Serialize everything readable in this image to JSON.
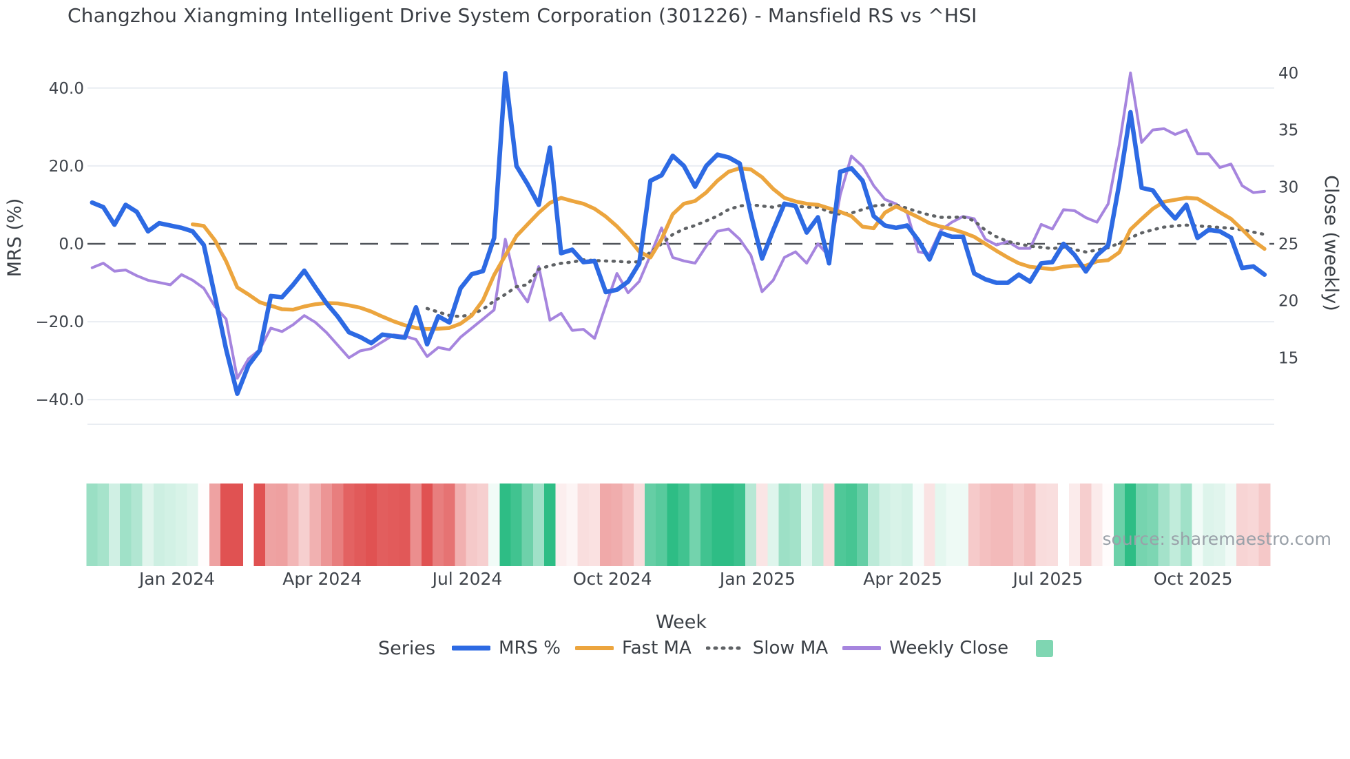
{
  "title": "Changzhou Xiangming Intelligent Drive System Corporation (301226) - Mansfield RS vs ^HSI",
  "watermark": "source: sharemaestro.com",
  "legend": {
    "title": "Series",
    "heat_swatch_color": "#7fd6b2"
  },
  "chart_data": {
    "type": "line",
    "title": "Changzhou Xiangming Intelligent Drive System Corporation (301226) - Mansfield RS vs ^HSI",
    "x_axis": {
      "label": "Week",
      "tick_labels": [
        "Jan 2024",
        "Apr 2024",
        "Jul 2024",
        "Oct 2024",
        "Jan 2025",
        "Apr 2025",
        "Jul 2025",
        "Oct 2025"
      ],
      "tick_weeks": [
        7.6,
        20.6,
        33.6,
        46.6,
        59.6,
        72.6,
        85.6,
        98.6
      ],
      "weeks_total": 106
    },
    "y_left": {
      "label": "MRS (%)",
      "tick_labels": [
        "40.0",
        "20.0",
        "0.0",
        "−20.0",
        "−40.0"
      ],
      "tick_values": [
        40,
        20,
        0,
        -20,
        -40
      ],
      "zero_line": 0
    },
    "y_right": {
      "label": "Close (weekly)",
      "tick_labels": [
        "40",
        "35",
        "30",
        "25",
        "20",
        "15"
      ],
      "tick_values": [
        40,
        35,
        30,
        25,
        20,
        15
      ]
    },
    "series": [
      {
        "name": "Weekly Close",
        "axis": "right",
        "color": "#a685de",
        "width": 4,
        "style": "solid",
        "start_week": 0,
        "values": [
          22.9,
          23.3,
          22.6,
          22.7,
          22.2,
          21.8,
          21.6,
          21.4,
          22.3,
          21.8,
          21.1,
          19.5,
          18.4,
          13.2,
          14.9,
          15.7,
          17.6,
          17.3,
          17.9,
          18.7,
          18.1,
          17.2,
          16.1,
          15.0,
          15.6,
          15.8,
          16.4,
          17.0,
          16.9,
          16.6,
          15.1,
          15.9,
          15.7,
          16.8,
          17.6,
          18.4,
          19.2,
          25.4,
          21.3,
          19.9,
          23.0,
          18.3,
          18.9,
          17.4,
          17.5,
          16.7,
          19.6,
          22.4,
          20.7,
          21.7,
          24.0,
          26.4,
          23.8,
          23.5,
          23.3,
          24.8,
          26.1,
          26.3,
          25.4,
          24.0,
          20.8,
          21.8,
          23.8,
          24.3,
          23.3,
          25.0,
          23.9,
          29.3,
          32.7,
          31.8,
          30.1,
          28.9,
          28.5,
          27.7,
          24.3,
          24.1,
          26.2,
          26.9,
          27.4,
          27.2,
          25.4,
          24.9,
          25.2,
          24.6,
          24.6,
          26.7,
          26.3,
          28.0,
          27.9,
          27.3,
          26.9,
          28.5,
          33.7,
          40.0,
          33.9,
          35.0,
          35.1,
          34.6,
          35.0,
          32.9,
          32.9,
          31.7,
          32.0,
          30.1,
          29.5,
          29.6
        ]
      },
      {
        "name": "Slow MA",
        "axis": "left",
        "color": "#5f6265",
        "width": 4.5,
        "style": "dotted",
        "start_week": 30,
        "values": [
          -16.6,
          -17.5,
          -18.4,
          -18.7,
          -18.1,
          -16.8,
          -14.7,
          -13.0,
          -11.0,
          -10.5,
          -6.5,
          -5.6,
          -5.0,
          -4.7,
          -4.1,
          -4.3,
          -4.4,
          -4.5,
          -4.7,
          -4.6,
          -2.1,
          0.0,
          2.4,
          3.8,
          4.7,
          5.9,
          7.1,
          8.8,
          9.7,
          10.0,
          9.7,
          9.4,
          10.1,
          9.7,
          9.4,
          9.4,
          8.2,
          7.6,
          7.9,
          8.8,
          9.7,
          10.0,
          10.0,
          9.1,
          8.2,
          7.4,
          6.8,
          6.8,
          6.9,
          5.9,
          3.5,
          1.8,
          0.6,
          0.0,
          -0.6,
          -0.9,
          -1.2,
          -0.9,
          -1.5,
          -2.1,
          -1.6,
          -1.0,
          0.2,
          1.6,
          2.8,
          3.6,
          4.3,
          4.6,
          4.8,
          4.6,
          4.4,
          4.2,
          4.0,
          3.6,
          3.0,
          2.4
        ]
      },
      {
        "name": "Fast MA",
        "axis": "left",
        "color": "#eca53e",
        "width": 5.5,
        "style": "solid",
        "start_week": 9,
        "values": [
          5.0,
          4.6,
          0.9,
          -4.5,
          -11.2,
          -13.0,
          -15.0,
          -15.9,
          -16.8,
          -16.9,
          -16.1,
          -15.5,
          -15.2,
          -15.3,
          -15.8,
          -16.4,
          -17.4,
          -18.7,
          -19.9,
          -20.9,
          -21.6,
          -21.9,
          -21.8,
          -21.6,
          -20.5,
          -18.4,
          -14.5,
          -8.0,
          -3.0,
          2.0,
          5.0,
          8.0,
          10.5,
          11.8,
          11.0,
          10.3,
          9.0,
          7.0,
          4.5,
          1.5,
          -2.0,
          -3.5,
          1.2,
          7.6,
          10.3,
          11.0,
          13.2,
          16.2,
          18.5,
          19.4,
          19.1,
          17.1,
          14.1,
          11.8,
          10.9,
          10.3,
          10.0,
          9.1,
          8.2,
          7.1,
          4.4,
          4.0,
          8.0,
          9.6,
          8.2,
          6.8,
          5.3,
          4.4,
          3.8,
          2.9,
          1.8,
          0.0,
          -1.8,
          -3.5,
          -5.0,
          -5.9,
          -6.2,
          -6.5,
          -5.9,
          -5.6,
          -5.6,
          -4.5,
          -4.2,
          -2.2,
          3.7,
          6.4,
          9.0,
          10.8,
          11.3,
          11.8,
          11.6,
          9.9,
          8.1,
          6.4,
          3.7,
          0.8,
          -1.3
        ]
      },
      {
        "name": "MRS %",
        "axis": "left",
        "color": "#2d6ae3",
        "width": 6.5,
        "style": "solid",
        "start_week": 0,
        "values": [
          10.6,
          9.4,
          4.9,
          10.0,
          8.2,
          3.2,
          5.3,
          4.7,
          4.1,
          3.2,
          -0.3,
          -13.5,
          -27.1,
          -38.5,
          -31.2,
          -27.4,
          -13.4,
          -13.7,
          -10.5,
          -6.9,
          -11.2,
          -15.3,
          -18.7,
          -22.7,
          -23.9,
          -25.5,
          -23.3,
          -23.7,
          -24.1,
          -16.3,
          -25.8,
          -18.6,
          -20.2,
          -11.4,
          -7.8,
          -7.0,
          1.5,
          43.8,
          20.0,
          15.3,
          10.0,
          24.7,
          -2.4,
          -1.5,
          -4.7,
          -4.4,
          -12.4,
          -11.8,
          -9.7,
          -5.0,
          16.2,
          17.6,
          22.6,
          20.0,
          14.7,
          20.0,
          22.9,
          22.2,
          20.6,
          7.6,
          -3.8,
          3.5,
          10.3,
          9.7,
          2.9,
          6.8,
          -5.0,
          18.5,
          19.4,
          16.2,
          7.1,
          4.7,
          4.1,
          4.7,
          0.9,
          -4.0,
          2.8,
          1.8,
          1.8,
          -7.6,
          -9.1,
          -10.0,
          -10.0,
          -7.9,
          -9.7,
          -5.0,
          -4.7,
          0.0,
          -2.9,
          -7.1,
          -2.9,
          -0.4,
          15.5,
          33.8,
          14.4,
          13.7,
          9.6,
          6.5,
          10.0,
          1.5,
          3.6,
          3.2,
          1.6,
          -6.2,
          -5.8,
          -7.9
        ]
      }
    ],
    "legend_order": [
      "MRS %",
      "Fast MA",
      "Slow MA",
      "Weekly Close"
    ],
    "heatmap": {
      "derived_from": "MRS %",
      "positive_color": "#2ebd85",
      "negative_color": "#e05252",
      "positive_full_scale": 22,
      "negative_full_scale": 25,
      "gap_weeks": [
        14
      ]
    }
  }
}
